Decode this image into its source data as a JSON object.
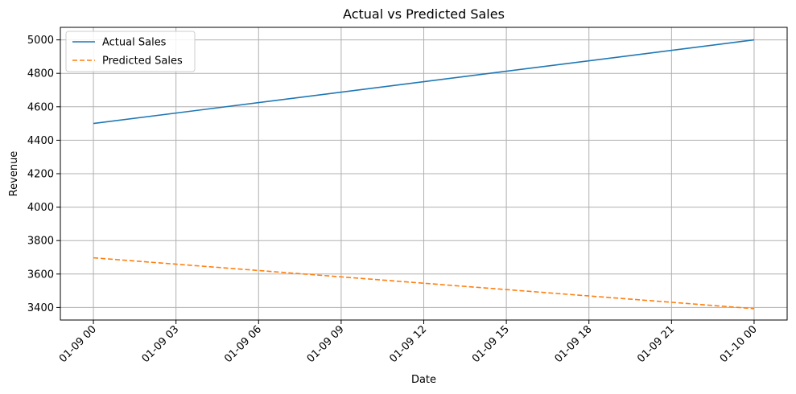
{
  "chart_data": {
    "type": "line",
    "title": "Actual vs Predicted Sales",
    "xlabel": "Date",
    "ylabel": "Revenue",
    "x_ticks": [
      "01-09 00",
      "01-09 03",
      "01-09 06",
      "01-09 09",
      "01-09 12",
      "01-09 15",
      "01-09 18",
      "01-09 21",
      "01-10 00"
    ],
    "x_tick_hours": [
      0,
      3,
      6,
      9,
      12,
      15,
      18,
      21,
      24
    ],
    "xlim_hours": [
      -1.2,
      25.2
    ],
    "y_ticks": [
      3400,
      3600,
      3800,
      4000,
      4200,
      4400,
      4600,
      4800,
      5000
    ],
    "ylim": [
      3325,
      5075
    ],
    "grid": true,
    "legend_position": "upper-left",
    "series": [
      {
        "name": "Actual Sales",
        "color": "#1f77b4",
        "dash": "solid",
        "x_hours": [
          0,
          24
        ],
        "values": [
          4500,
          5000
        ]
      },
      {
        "name": "Predicted Sales",
        "color": "#ff7f0e",
        "dash": "dashed",
        "x_hours": [
          0,
          24
        ],
        "values": [
          3697,
          3393
        ]
      }
    ]
  }
}
